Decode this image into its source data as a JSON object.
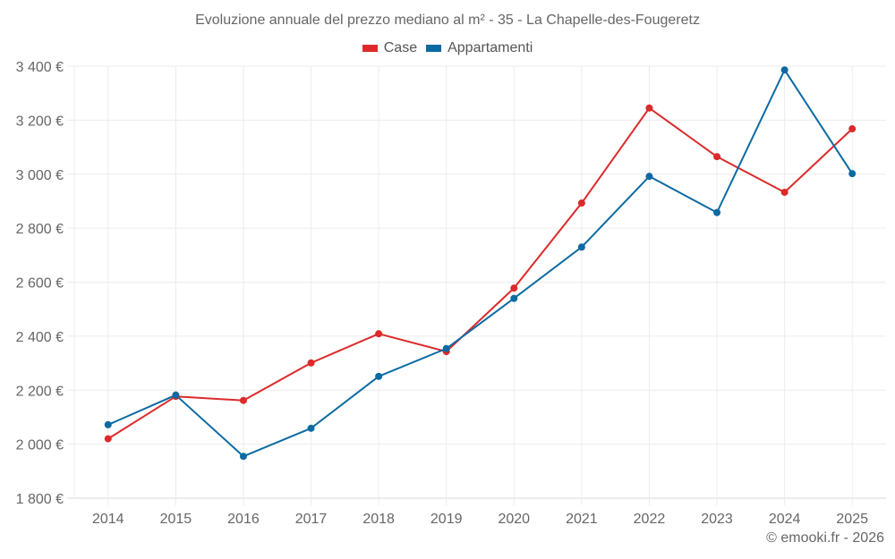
{
  "chart_data": {
    "type": "line",
    "title": "Evoluzione annuale del prezzo mediano al m² - 35 - La Chapelle-des-Fougeretz",
    "xlabel": "",
    "ylabel": "",
    "x": [
      "2014",
      "2015",
      "2016",
      "2017",
      "2018",
      "2019",
      "2020",
      "2021",
      "2022",
      "2023",
      "2024",
      "2025"
    ],
    "yticks": [
      1800,
      2000,
      2200,
      2400,
      2600,
      2800,
      3000,
      3200,
      3400
    ],
    "ytick_labels": [
      "1 800 €",
      "2 000 €",
      "2 200 €",
      "2 400 €",
      "2 600 €",
      "2 800 €",
      "3 000 €",
      "3 200 €",
      "3 400 €"
    ],
    "ylim": [
      1800,
      3400
    ],
    "grid": true,
    "legend_position": "top-center",
    "series": [
      {
        "name": "Case",
        "color": "#dc2a2a",
        "values": [
          2020,
          2177,
          2162,
          2301,
          2409,
          2343,
          2578,
          2893,
          3245,
          3065,
          2933,
          3168
        ]
      },
      {
        "name": "Appartamenti",
        "color": "#0b6aa2",
        "values": [
          2072,
          2182,
          1955,
          2059,
          2251,
          2354,
          2540,
          2730,
          2992,
          2858,
          3386,
          3002
        ]
      }
    ]
  },
  "credit": "© emooki.fr - 2026"
}
